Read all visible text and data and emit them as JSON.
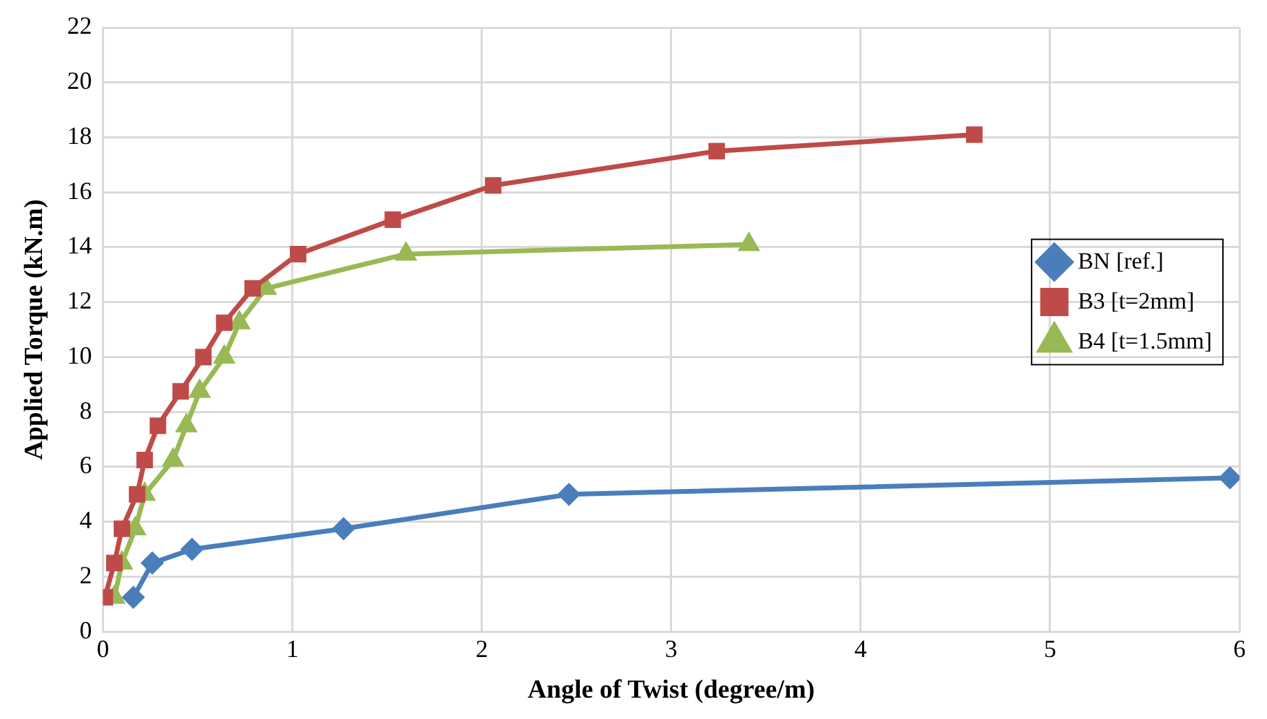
{
  "chart_data": {
    "type": "line",
    "xlabel": "Angle of Twist (degree/m)",
    "ylabel": "Applied Torque (kN.m)",
    "xlim": [
      0,
      6
    ],
    "xticks": [
      0,
      1,
      2,
      3,
      4,
      5,
      6
    ],
    "ylim": [
      0,
      22
    ],
    "yticks": [
      0,
      2,
      4,
      6,
      8,
      10,
      12,
      14,
      16,
      18,
      20,
      22
    ],
    "grid": true,
    "legend": "right",
    "line_style": "solid",
    "series": [
      {
        "name": "BN [ref.]",
        "color": "#4a7ebb",
        "marker": "diamond",
        "x": [
          0.16,
          0.26,
          0.47,
          1.27,
          2.46,
          5.95
        ],
        "values": [
          1.25,
          2.5,
          3.0,
          3.75,
          5.0,
          5.6
        ]
      },
      {
        "name": "B3 [t=2mm]",
        "color": "#be4b48",
        "marker": "square",
        "x": [
          0.01,
          0.06,
          0.1,
          0.18,
          0.22,
          0.29,
          0.41,
          0.53,
          0.64,
          0.79,
          1.03,
          1.53,
          2.06,
          3.24,
          4.6
        ],
        "values": [
          1.25,
          2.5,
          3.75,
          5,
          6.25,
          7.5,
          8.75,
          10,
          11.25,
          12.5,
          13.75,
          15,
          16.25,
          17.5,
          18.1
        ]
      },
      {
        "name": "B4 [t=1.5mm]",
        "color": "#98b954",
        "marker": "triangle",
        "x": [
          0.06,
          0.1,
          0.17,
          0.22,
          0.37,
          0.44,
          0.51,
          0.64,
          0.72,
          0.86,
          1.6,
          3.41
        ],
        "values": [
          1.25,
          2.5,
          3.75,
          5,
          6.25,
          7.5,
          8.75,
          10,
          11.25,
          12.5,
          13.75,
          14.1
        ]
      }
    ]
  }
}
